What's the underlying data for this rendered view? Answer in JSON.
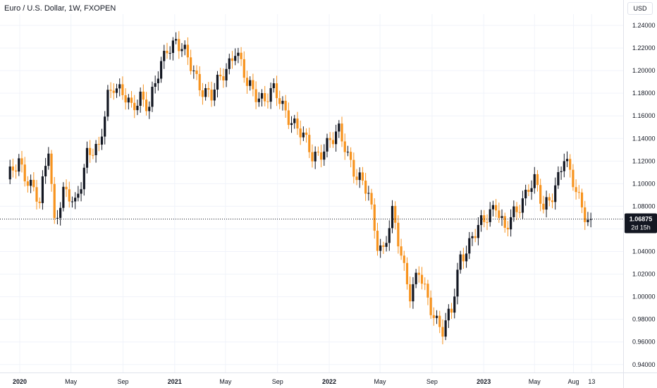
{
  "header": {
    "title": "Euro / U.S. Dollar, 1W, FXOPEN",
    "currency_button": "USD"
  },
  "price_tag": {
    "value": "1.06875",
    "countdown": "2d 15h"
  },
  "colors": {
    "up": "#131722",
    "down": "#f7931e",
    "grid": "#f0f3fa",
    "price_tag_bg": "#131722",
    "price_tag_text": "#ffffff"
  },
  "chart_data": {
    "type": "candlestick",
    "ylim": [
      0.933,
      1.25
    ],
    "y_ticks": [
      "1.24000",
      "1.22000",
      "1.20000",
      "1.18000",
      "1.16000",
      "1.14000",
      "1.12000",
      "1.10000",
      "1.08000",
      "1.06000",
      "1.04000",
      "1.02000",
      "1.00000",
      "0.98000",
      "0.96000",
      "0.94000"
    ],
    "x_ticks": [
      {
        "label": "2020",
        "date": "2020-01-01",
        "bold": true
      },
      {
        "label": "May",
        "date": "2020-05-01",
        "bold": false
      },
      {
        "label": "Sep",
        "date": "2020-09-01",
        "bold": false
      },
      {
        "label": "2021",
        "date": "2021-01-01",
        "bold": true
      },
      {
        "label": "May",
        "date": "2021-05-01",
        "bold": false
      },
      {
        "label": "Sep",
        "date": "2021-09-01",
        "bold": false
      },
      {
        "label": "2022",
        "date": "2022-01-01",
        "bold": true
      },
      {
        "label": "May",
        "date": "2022-05-01",
        "bold": false
      },
      {
        "label": "Sep",
        "date": "2022-09-01",
        "bold": false
      },
      {
        "label": "2023",
        "date": "2023-01-01",
        "bold": true
      },
      {
        "label": "May",
        "date": "2023-05-01",
        "bold": false
      },
      {
        "label": "Aug",
        "date": "2023-08-01",
        "bold": false
      },
      {
        "label": "13",
        "date": "2023-09-13",
        "bold": false
      }
    ],
    "last_price": 1.06875,
    "keypoints": [
      [
        "2019-12-02",
        1.1
      ],
      [
        "2019-12-30",
        1.122
      ],
      [
        "2020-02-17",
        1.08
      ],
      [
        "2020-03-09",
        1.135
      ],
      [
        "2020-03-23",
        1.068
      ],
      [
        "2020-04-13",
        1.09
      ],
      [
        "2020-05-11",
        1.082
      ],
      [
        "2020-06-08",
        1.128
      ],
      [
        "2020-07-06",
        1.127
      ],
      [
        "2020-07-27",
        1.18
      ],
      [
        "2020-08-10",
        1.19
      ],
      [
        "2020-09-21",
        1.165
      ],
      [
        "2020-10-12",
        1.18
      ],
      [
        "2020-11-02",
        1.168
      ],
      [
        "2020-12-14",
        1.222
      ],
      [
        "2021-01-04",
        1.227
      ],
      [
        "2021-03-08",
        1.185
      ],
      [
        "2021-03-29",
        1.176
      ],
      [
        "2021-05-24",
        1.22
      ],
      [
        "2021-06-21",
        1.186
      ],
      [
        "2021-07-12",
        1.181
      ],
      [
        "2021-08-02",
        1.176
      ],
      [
        "2021-08-23",
        1.18
      ],
      [
        "2021-10-04",
        1.158
      ],
      [
        "2021-11-22",
        1.125
      ],
      [
        "2022-01-10",
        1.137
      ],
      [
        "2022-01-24",
        1.146
      ],
      [
        "2022-02-07",
        1.136
      ],
      [
        "2022-03-07",
        1.105
      ],
      [
        "2022-04-04",
        1.09
      ],
      [
        "2022-04-25",
        1.05
      ],
      [
        "2022-05-09",
        1.041
      ],
      [
        "2022-05-30",
        1.071
      ],
      [
        "2022-07-11",
        1.005
      ],
      [
        "2022-08-01",
        1.02
      ],
      [
        "2022-08-22",
        0.995
      ],
      [
        "2022-09-26",
        0.972
      ],
      [
        "2022-10-17",
        0.985
      ],
      [
        "2022-11-07",
        1.035
      ],
      [
        "2022-12-05",
        1.054
      ],
      [
        "2023-01-02",
        1.065
      ],
      [
        "2023-01-30",
        1.085
      ],
      [
        "2023-02-20",
        1.058
      ],
      [
        "2023-03-20",
        1.075
      ],
      [
        "2023-04-17",
        1.1
      ],
      [
        "2023-05-01",
        1.102
      ],
      [
        "2023-05-22",
        1.075
      ],
      [
        "2023-06-12",
        1.093
      ],
      [
        "2023-07-10",
        1.123
      ],
      [
        "2023-07-24",
        1.105
      ],
      [
        "2023-08-21",
        1.082
      ],
      [
        "2023-09-04",
        1.07
      ],
      [
        "2023-09-11",
        1.06875
      ]
    ]
  }
}
